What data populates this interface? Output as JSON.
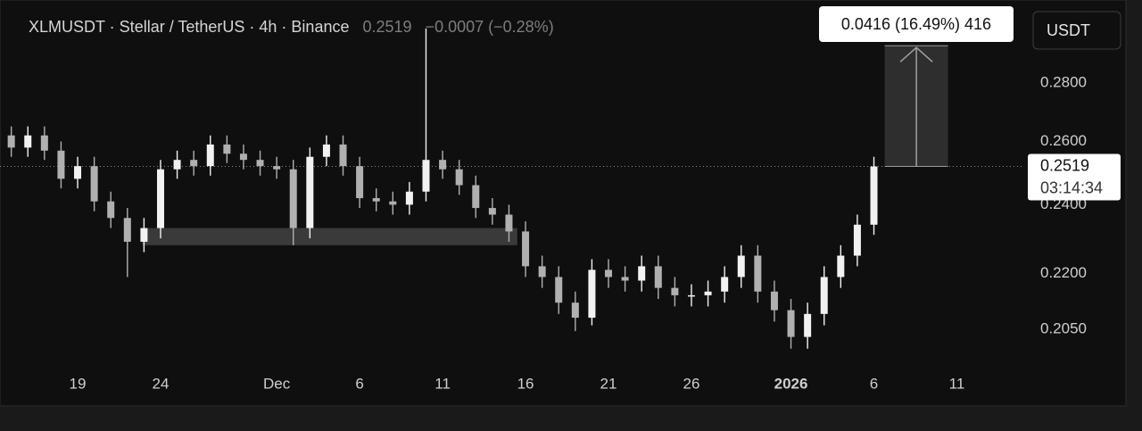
{
  "chart_data": {
    "type": "candlestick",
    "title": "XLMUSDT · Stellar / TetherUS · 4h · Binance",
    "last_price": "0.2519",
    "change": "−0.0007 (−0.28%)",
    "currency": "USDT",
    "log": true,
    "grid": false,
    "up_color": "#f2f2f2",
    "down_color": "#b0b0b0",
    "x": [
      15,
      16,
      17,
      18,
      19,
      20,
      21,
      22,
      23,
      24,
      25,
      26,
      27,
      28,
      29,
      30,
      31,
      32,
      33,
      34,
      35,
      36,
      37,
      38,
      39,
      40,
      41,
      42,
      43,
      44,
      45,
      46,
      47,
      48,
      49,
      50,
      51,
      52,
      53,
      54,
      55,
      56,
      57,
      58,
      59,
      60,
      61,
      62,
      63,
      64,
      65,
      66,
      67
    ],
    "open": [
      0.262,
      0.258,
      0.262,
      0.257,
      0.248,
      0.252,
      0.241,
      0.236,
      0.229,
      0.233,
      0.251,
      0.254,
      0.252,
      0.259,
      0.256,
      0.254,
      0.252,
      0.251,
      0.233,
      0.255,
      0.259,
      0.252,
      0.242,
      0.241,
      0.24,
      0.244,
      0.254,
      0.251,
      0.246,
      0.239,
      0.237,
      0.232,
      0.222,
      0.219,
      0.212,
      0.208,
      0.221,
      0.219,
      0.218,
      0.222,
      0.216,
      0.214,
      0.214,
      0.215,
      0.219,
      0.225,
      0.215,
      0.21,
      0.203,
      0.209,
      0.219,
      0.225,
      0.234
    ],
    "high": [
      0.265,
      0.265,
      0.265,
      0.26,
      0.255,
      0.255,
      0.244,
      0.239,
      0.236,
      0.254,
      0.257,
      0.257,
      0.262,
      0.262,
      0.259,
      0.257,
      0.255,
      0.254,
      0.258,
      0.262,
      0.262,
      0.255,
      0.245,
      0.244,
      0.247,
      0.3,
      0.257,
      0.254,
      0.249,
      0.242,
      0.24,
      0.235,
      0.225,
      0.222,
      0.215,
      0.224,
      0.224,
      0.222,
      0.225,
      0.225,
      0.219,
      0.217,
      0.218,
      0.222,
      0.228,
      0.228,
      0.218,
      0.213,
      0.212,
      0.222,
      0.228,
      0.237,
      0.255
    ],
    "low": [
      0.255,
      0.255,
      0.254,
      0.245,
      0.245,
      0.238,
      0.233,
      0.219,
      0.226,
      0.23,
      0.248,
      0.249,
      0.249,
      0.253,
      0.251,
      0.249,
      0.248,
      0.228,
      0.23,
      0.252,
      0.249,
      0.239,
      0.238,
      0.237,
      0.237,
      0.241,
      0.248,
      0.243,
      0.236,
      0.234,
      0.229,
      0.219,
      0.216,
      0.209,
      0.2045,
      0.206,
      0.216,
      0.215,
      0.215,
      0.213,
      0.211,
      0.211,
      0.211,
      0.212,
      0.216,
      0.212,
      0.207,
      0.2,
      0.2,
      0.206,
      0.216,
      0.222,
      0.231
    ],
    "close": [
      0.258,
      0.262,
      0.257,
      0.248,
      0.252,
      0.241,
      0.236,
      0.229,
      0.233,
      0.251,
      0.254,
      0.252,
      0.259,
      0.256,
      0.254,
      0.252,
      0.251,
      0.233,
      0.255,
      0.259,
      0.252,
      0.242,
      0.241,
      0.24,
      0.244,
      0.254,
      0.251,
      0.246,
      0.239,
      0.237,
      0.232,
      0.222,
      0.219,
      0.212,
      0.208,
      0.221,
      0.219,
      0.218,
      0.222,
      0.216,
      0.214,
      0.214,
      0.215,
      0.219,
      0.225,
      0.215,
      0.21,
      0.203,
      0.209,
      0.219,
      0.225,
      0.234,
      0.2519
    ],
    "xlim": [
      14.32,
      75.9
    ],
    "xticks": [
      {
        "value": 19,
        "label": "19"
      },
      {
        "value": 24,
        "label": "24"
      },
      {
        "value": 31,
        "label": "Dec"
      },
      {
        "value": 36,
        "label": "6"
      },
      {
        "value": 41,
        "label": "11"
      },
      {
        "value": 46,
        "label": "16"
      },
      {
        "value": 51,
        "label": "21"
      },
      {
        "value": 56,
        "label": "26"
      },
      {
        "value": 62,
        "label": "2026"
      },
      {
        "value": 67,
        "label": "6"
      },
      {
        "value": 72,
        "label": "11"
      }
    ],
    "ylim": [
      0.1957,
      0.311
    ],
    "yticks": [
      {
        "value": 0.28,
        "label": "0.2800"
      },
      {
        "value": 0.26,
        "label": "0.2600"
      },
      {
        "value": 0.24,
        "label": "0.2400"
      },
      {
        "value": 0.22,
        "label": "0.2200"
      },
      {
        "value": 0.205,
        "label": "0.2050"
      }
    ],
    "price_line": {
      "value": 0.2519,
      "label": "0.2519",
      "countdown": "03:14:34"
    },
    "zone": {
      "x": [
        22.9,
        45.5
      ],
      "y": [
        0.228,
        0.233
      ]
    },
    "measure": {
      "x": [
        67.65,
        71.47
      ],
      "from": 0.2519,
      "to": 0.2935,
      "label": "0.0416 (16.49%) 416"
    }
  }
}
